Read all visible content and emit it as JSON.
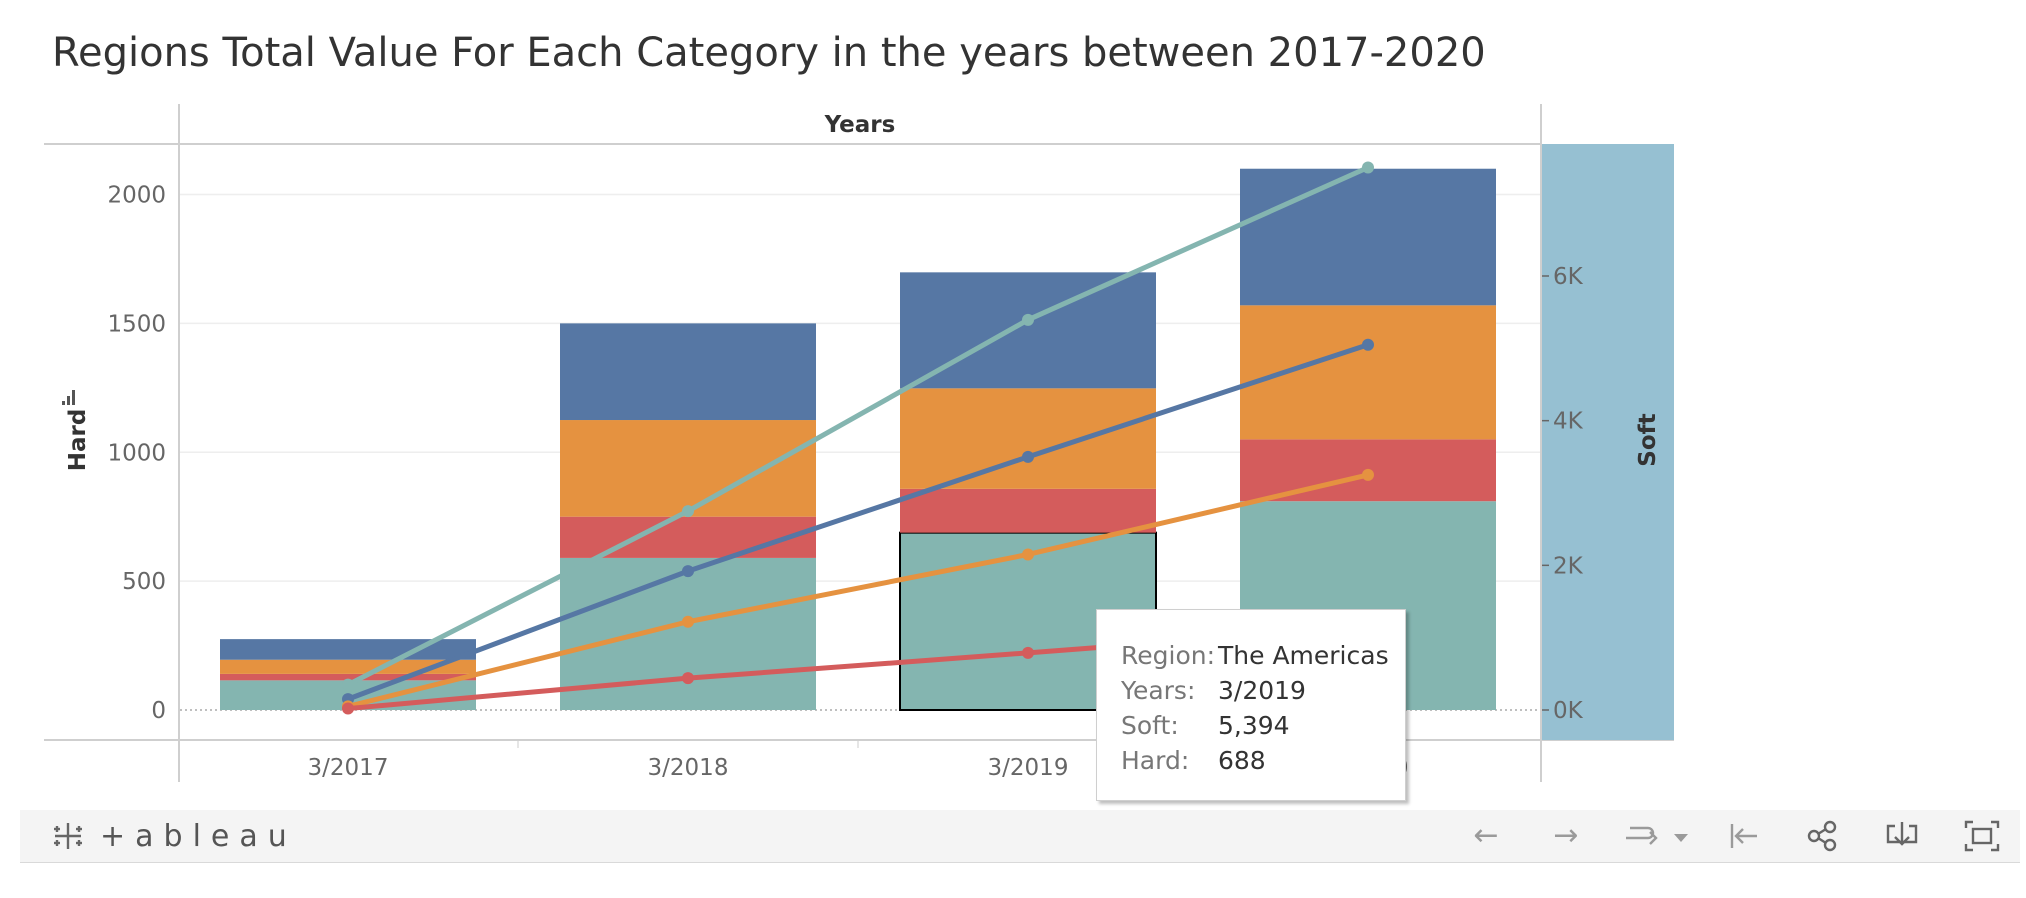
{
  "title": "Regions Total Value For Each Category in the years between 2017-2020",
  "colors": {
    "teal": "#84b5b0",
    "red": "#d45c5c",
    "orange": "#e59240",
    "blue": "#5677a4",
    "soft_band": "#96c0d2"
  },
  "chart_data": {
    "type": "bar",
    "title": "Regions Total Value For Each Category in the years between 2017-2020",
    "x_header": "Years",
    "categories": [
      "3/2017",
      "3/2018",
      "3/2019",
      "3/2020"
    ],
    "stack_order_bottom_to_top": [
      "teal",
      "red",
      "orange",
      "blue"
    ],
    "bar_series_axis": "Hard",
    "bars": {
      "teal": [
        115,
        590,
        688,
        810
      ],
      "red": [
        25,
        160,
        170,
        240
      ],
      "orange": [
        55,
        375,
        390,
        520
      ],
      "blue": [
        80,
        375,
        450,
        530
      ]
    },
    "line_series_axis": "Soft",
    "lines": {
      "teal": [
        350,
        2750,
        5394,
        7500
      ],
      "blue": [
        150,
        1920,
        3500,
        5050
      ],
      "orange": [
        50,
        1220,
        2150,
        3250
      ],
      "red": [
        20,
        440,
        790,
        1150
      ]
    },
    "y_left": {
      "label": "Hard",
      "min": 0,
      "max": 2200,
      "ticks": [
        "0",
        "500",
        "1000",
        "1500",
        "2000"
      ],
      "tick_values": [
        0,
        500,
        1000,
        1500,
        2000
      ]
    },
    "y_right": {
      "label": "Soft",
      "min": 0,
      "max": 7850,
      "ticks": [
        "0K",
        "2K",
        "4K",
        "6K"
      ],
      "tick_values": [
        0,
        2000,
        4000,
        6000
      ]
    },
    "highlighted": {
      "category": "3/2019",
      "series": "teal"
    }
  },
  "tooltip": {
    "rows": [
      {
        "key": "Region:",
        "value": "The Americas"
      },
      {
        "key": "Years:",
        "value": "3/2019"
      },
      {
        "key": "Soft:",
        "value": "5,394"
      },
      {
        "key": "Hard:",
        "value": "688"
      }
    ]
  },
  "toolbar": {
    "logo_text": "+ableau",
    "icons": [
      "undo-icon",
      "redo-icon",
      "revert-icon",
      "dropdown-icon",
      "reset-icon",
      "share-icon",
      "download-icon",
      "fullscreen-icon"
    ]
  }
}
